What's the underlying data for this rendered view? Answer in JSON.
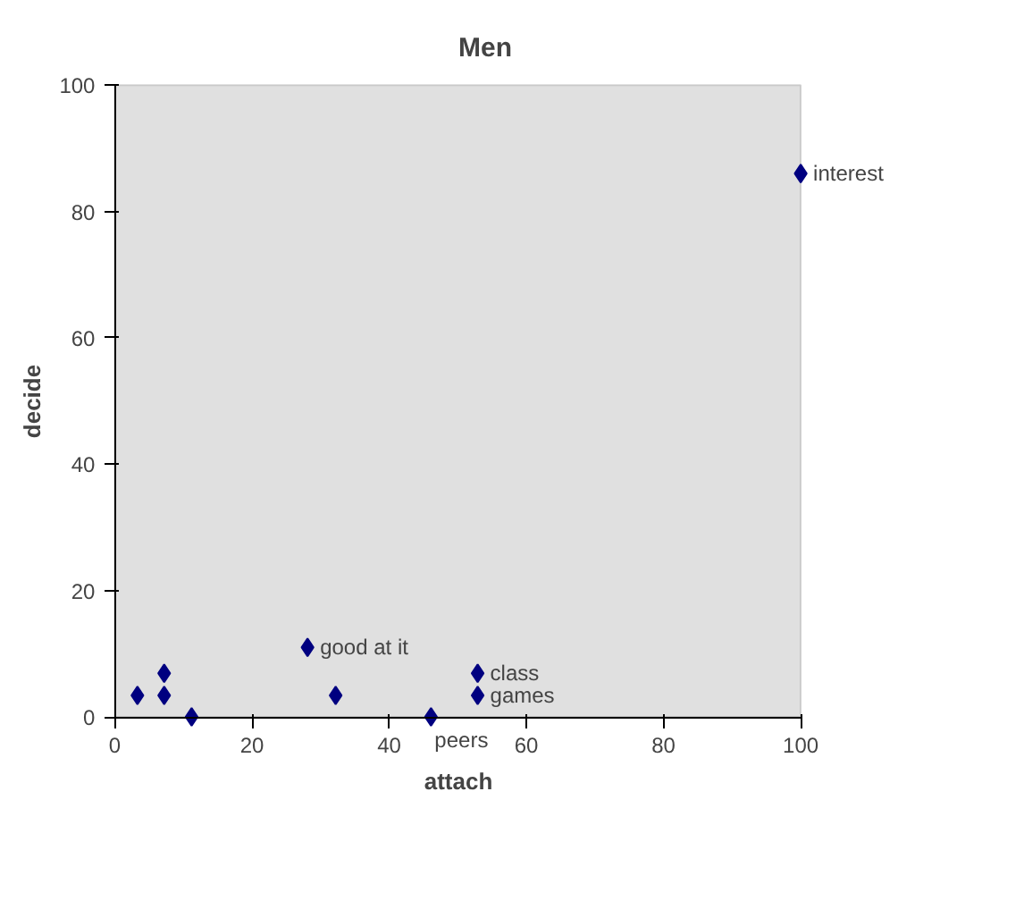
{
  "chart_data": {
    "type": "scatter",
    "title": "Men",
    "xlabel": "attach",
    "ylabel": "decide",
    "x": [
      3.3,
      7.2,
      7.2,
      11.2,
      28.1,
      32.2,
      46.1,
      52.9,
      52.9,
      100
    ],
    "series": [
      {
        "color": "#000080",
        "values": [
          3.4,
          6.9,
          3.4,
          0,
          11,
          3.4,
          0,
          6.9,
          3.4,
          86
        ]
      }
    ],
    "marker": "diamond",
    "xlim": [
      0,
      100
    ],
    "ylim": [
      0,
      100
    ],
    "xticks": [
      0,
      20,
      40,
      60,
      80,
      100
    ],
    "yticks": [
      0,
      20,
      40,
      60,
      80,
      100
    ],
    "grid": false,
    "annotations": [
      {
        "text": "good at it",
        "x": 28.1,
        "y": 11
      },
      {
        "text": "class",
        "x": 52.9,
        "y": 6.9
      },
      {
        "text": "games",
        "x": 52.9,
        "y": 3.4
      },
      {
        "text": "peers",
        "x": 46.1,
        "y": 0
      },
      {
        "text": "interest",
        "x": 100,
        "y": 86
      }
    ]
  }
}
